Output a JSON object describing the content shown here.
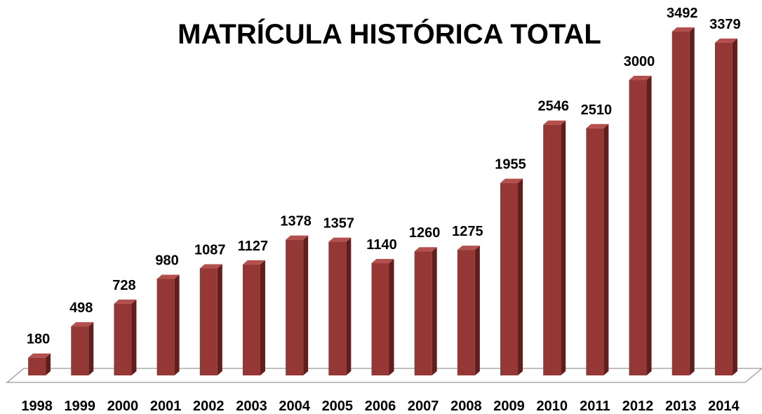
{
  "chart_data": {
    "type": "bar",
    "title": "MATRÍCULA HISTÓRICA TOTAL",
    "categories": [
      "1998",
      "1999",
      "2000",
      "2001",
      "2002",
      "2003",
      "2004",
      "2005",
      "2006",
      "2007",
      "2008",
      "2009",
      "2010",
      "2011",
      "2012",
      "2013",
      "2014"
    ],
    "values": [
      180,
      498,
      728,
      980,
      1087,
      1127,
      1378,
      1357,
      1140,
      1260,
      1275,
      1955,
      2546,
      2510,
      3000,
      3492,
      3379
    ],
    "color": "#953735",
    "grid": false
  }
}
